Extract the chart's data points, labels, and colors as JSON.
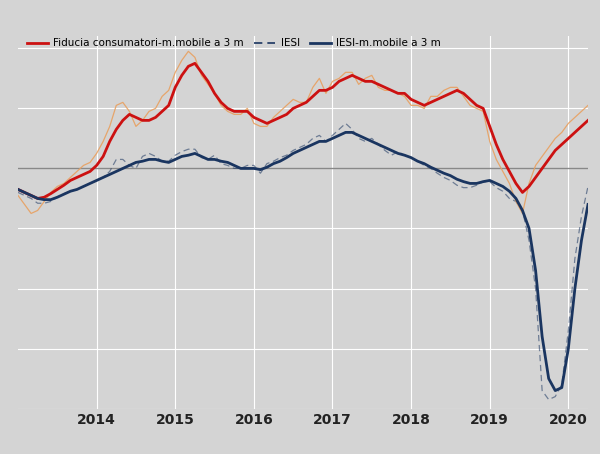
{
  "background_color": "#d4d4d4",
  "plot_bg_color": "#d4d4d4",
  "grid_color": "#ffffff",
  "zero_line_color": "#888888",
  "fiducia_color": "#cc1111",
  "fiducia_raw_color": "#e8a060",
  "iesi_solid_color": "#1a3560",
  "iesi_dash_color": "#1a3560",
  "legend_labels": [
    "Fiducia consumatori-m.mobile a 3 m",
    "IESI",
    "IESI-m.mobile a 3 m"
  ],
  "x_tick_labels": [
    "2014",
    "2015",
    "2016",
    "2017",
    "2018",
    "2019",
    "2020"
  ],
  "figsize": [
    6.0,
    4.54
  ],
  "dpi": 100,
  "ylim": [
    -40,
    22
  ],
  "fiducia_ma": [
    -3.5,
    -4.0,
    -4.5,
    -5.0,
    -4.8,
    -4.2,
    -3.5,
    -2.8,
    -2.0,
    -1.5,
    -1.0,
    -0.5,
    0.5,
    2.0,
    4.5,
    6.5,
    8.0,
    9.0,
    8.5,
    8.0,
    8.0,
    8.5,
    9.5,
    10.5,
    13.5,
    15.5,
    17.0,
    17.5,
    16.0,
    14.5,
    12.5,
    11.0,
    10.0,
    9.5,
    9.5,
    9.5,
    8.5,
    8.0,
    7.5,
    8.0,
    8.5,
    9.0,
    10.0,
    10.5,
    11.0,
    12.0,
    13.0,
    13.0,
    13.5,
    14.5,
    15.0,
    15.5,
    15.0,
    14.5,
    14.5,
    14.0,
    13.5,
    13.0,
    12.5,
    12.5,
    11.5,
    11.0,
    10.5,
    11.0,
    11.5,
    12.0,
    12.5,
    13.0,
    12.5,
    11.5,
    10.5,
    10.0,
    7.0,
    4.0,
    1.5,
    -0.5,
    -2.5,
    -4.0,
    -3.0,
    -1.5,
    0.0,
    1.5,
    3.0,
    4.0,
    5.0,
    6.0,
    7.0,
    8.0
  ],
  "fiducia_raw": [
    -4.5,
    -6.0,
    -7.5,
    -7.0,
    -5.5,
    -4.0,
    -3.0,
    -2.5,
    -1.5,
    -0.5,
    0.5,
    1.0,
    2.5,
    4.5,
    7.0,
    10.5,
    11.0,
    9.5,
    7.0,
    8.0,
    9.5,
    10.0,
    12.0,
    13.0,
    16.0,
    18.0,
    19.5,
    18.5,
    15.5,
    14.0,
    12.5,
    10.5,
    9.5,
    9.0,
    9.0,
    10.0,
    7.5,
    7.0,
    7.0,
    8.5,
    9.5,
    10.5,
    11.5,
    11.0,
    11.0,
    13.5,
    15.0,
    12.5,
    14.5,
    15.0,
    16.0,
    16.0,
    14.0,
    15.0,
    15.5,
    13.5,
    13.0,
    13.0,
    12.5,
    12.0,
    10.5,
    10.5,
    10.0,
    12.0,
    12.0,
    13.0,
    13.5,
    13.5,
    12.0,
    10.5,
    10.0,
    9.5,
    4.5,
    1.5,
    -0.5,
    -2.5,
    -5.5,
    -7.5,
    -2.5,
    0.5,
    2.0,
    3.5,
    5.0,
    6.0,
    7.5,
    8.5,
    9.5,
    10.5
  ],
  "iesi_ma": [
    -3.5,
    -4.0,
    -4.5,
    -5.0,
    -5.2,
    -5.2,
    -4.8,
    -4.3,
    -3.8,
    -3.5,
    -3.0,
    -2.5,
    -2.0,
    -1.5,
    -1.0,
    -0.5,
    0.0,
    0.5,
    1.0,
    1.2,
    1.5,
    1.5,
    1.2,
    1.0,
    1.5,
    2.0,
    2.2,
    2.5,
    2.0,
    1.5,
    1.5,
    1.2,
    1.0,
    0.5,
    0.0,
    0.0,
    0.0,
    -0.2,
    0.2,
    0.8,
    1.2,
    1.8,
    2.5,
    3.0,
    3.5,
    4.0,
    4.5,
    4.5,
    5.0,
    5.5,
    6.0,
    6.0,
    5.5,
    5.0,
    4.5,
    4.0,
    3.5,
    3.0,
    2.5,
    2.2,
    1.8,
    1.2,
    0.8,
    0.2,
    -0.3,
    -0.8,
    -1.2,
    -1.8,
    -2.2,
    -2.5,
    -2.5,
    -2.2,
    -2.0,
    -2.5,
    -3.0,
    -3.8,
    -5.0,
    -7.0,
    -10.0,
    -17.0,
    -28.0,
    -35.0,
    -37.0,
    -36.5,
    -30.0,
    -20.0,
    -12.0,
    -6.0
  ],
  "iesi_raw": [
    -4.0,
    -4.5,
    -5.0,
    -5.8,
    -5.8,
    -5.5,
    -4.8,
    -4.2,
    -3.8,
    -3.5,
    -3.0,
    -2.5,
    -2.0,
    -1.5,
    -0.5,
    1.5,
    1.5,
    0.5,
    0.0,
    2.0,
    2.5,
    2.0,
    1.2,
    1.2,
    2.2,
    2.8,
    3.2,
    3.2,
    1.8,
    1.5,
    2.2,
    0.8,
    0.5,
    0.0,
    0.0,
    0.5,
    0.5,
    -0.8,
    0.8,
    1.2,
    1.8,
    2.2,
    3.0,
    3.5,
    4.0,
    5.0,
    5.5,
    4.5,
    5.5,
    6.5,
    7.5,
    6.5,
    5.0,
    4.5,
    5.0,
    4.0,
    3.0,
    2.2,
    2.8,
    2.2,
    1.8,
    1.2,
    0.5,
    0.0,
    -0.8,
    -1.5,
    -2.0,
    -2.8,
    -3.2,
    -3.2,
    -2.8,
    -2.2,
    -2.2,
    -3.2,
    -3.8,
    -5.0,
    -5.5,
    -7.0,
    -12.0,
    -20.0,
    -37.0,
    -38.5,
    -38.0,
    -36.0,
    -27.0,
    -15.0,
    -8.0,
    -3.0
  ]
}
